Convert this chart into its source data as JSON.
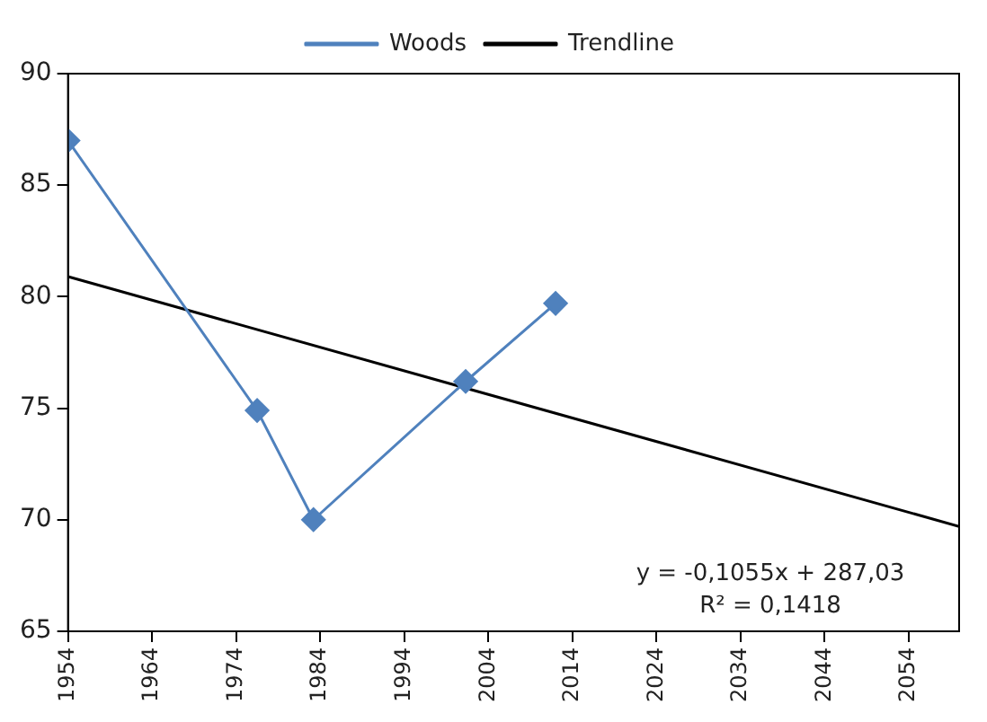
{
  "chart_data": {
    "type": "line",
    "xlim": [
      1954,
      2060
    ],
    "xticks": [
      1954,
      1964,
      1974,
      1984,
      1994,
      2004,
      2014,
      2024,
      2034,
      2044,
      2054
    ],
    "ylim": [
      65,
      90
    ],
    "yticks": [
      65,
      70,
      75,
      80,
      85,
      90
    ],
    "grid": false,
    "legend": "top",
    "series": [
      {
        "name": "Woods",
        "color": "#4f81bd",
        "marker": "diamond",
        "x": [
          1954,
          1976.5,
          1983.2,
          2001.3,
          2012
        ],
        "values": [
          87,
          74.9,
          70,
          76.2,
          79.7
        ]
      },
      {
        "name": "Trendline",
        "type": "line",
        "color": "#000000",
        "marker": "none",
        "x": [
          1954,
          2060
        ],
        "values": [
          80.9,
          69.7
        ]
      }
    ],
    "annotations": [
      "y = -0,1055x + 287,03",
      "R² = 0,1418"
    ]
  }
}
